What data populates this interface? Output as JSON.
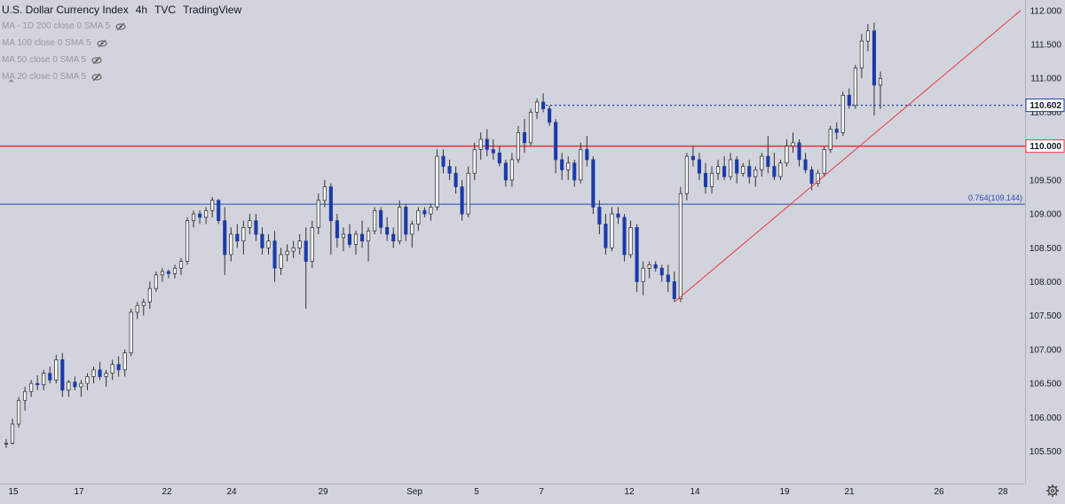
{
  "header": {
    "symbol": "U.S. Dollar Currency Index",
    "interval": "4h",
    "exchange": "TVC",
    "source": "TradingView",
    "indicators": [
      {
        "label": "MA - 1D 200 close 0 SMA 5",
        "icon": "eye-crossed-icon"
      },
      {
        "label": "MA 100 close 0 SMA 5",
        "icon": "eye-crossed-icon"
      },
      {
        "label": "MA 50 close 0 SMA 5",
        "icon": "eye-crossed-icon"
      },
      {
        "label": "MA 20 close 0 SMA 5",
        "icon": "eye-crossed-icon"
      }
    ]
  },
  "colors": {
    "background": "#d1d4dc",
    "bull_body": "#ffffff",
    "bear_body": "#1c3aa9",
    "wick": "#333333",
    "resistance": "#f23645",
    "fib": "#2a4bb0",
    "trendline": "#f23645"
  },
  "chart_data": {
    "type": "candlestick",
    "ylim": [
      105.35,
      112.05
    ],
    "yticks": [
      "112.000",
      "111.500",
      "111.000",
      "110.500",
      "110.000",
      "109.500",
      "109.000",
      "108.500",
      "108.000",
      "107.500",
      "107.000",
      "106.500",
      "106.000",
      "105.500"
    ],
    "xticks": [
      "15",
      "17",
      "22",
      "24",
      "29",
      "Sep",
      "5",
      "7",
      "12",
      "14",
      "19",
      "21",
      "26",
      "28"
    ],
    "price_labels": [
      {
        "value": 110.602,
        "text": "110.602",
        "style": "dotted"
      },
      {
        "value": 110.0,
        "text": "110.000",
        "style": "solid-red"
      }
    ],
    "fib_level": {
      "value": 109.144,
      "text": "0.764(109.144)"
    },
    "trendline": {
      "from": {
        "x": 107.7
      },
      "to": {
        "x": 112.0
      }
    },
    "candles": [
      [
        105.62,
        105.68,
        105.55,
        105.62
      ],
      [
        105.62,
        105.98,
        105.6,
        105.9
      ],
      [
        105.9,
        106.3,
        105.85,
        106.25
      ],
      [
        106.25,
        106.45,
        106.1,
        106.38
      ],
      [
        106.38,
        106.55,
        106.3,
        106.5
      ],
      [
        106.5,
        106.62,
        106.4,
        106.48
      ],
      [
        106.48,
        106.7,
        106.4,
        106.65
      ],
      [
        106.65,
        106.75,
        106.5,
        106.55
      ],
      [
        106.55,
        106.92,
        106.5,
        106.85
      ],
      [
        106.85,
        106.95,
        106.3,
        106.4
      ],
      [
        106.4,
        106.55,
        106.3,
        106.52
      ],
      [
        106.52,
        106.6,
        106.4,
        106.45
      ],
      [
        106.45,
        106.55,
        106.3,
        106.5
      ],
      [
        106.5,
        106.65,
        106.4,
        106.6
      ],
      [
        106.6,
        106.75,
        106.5,
        106.7
      ],
      [
        106.7,
        106.82,
        106.55,
        106.6
      ],
      [
        106.6,
        106.7,
        106.45,
        106.65
      ],
      [
        106.65,
        106.85,
        106.55,
        106.78
      ],
      [
        106.78,
        106.9,
        106.6,
        106.7
      ],
      [
        106.7,
        107.0,
        106.6,
        106.95
      ],
      [
        106.95,
        107.6,
        106.9,
        107.55
      ],
      [
        107.55,
        107.7,
        107.45,
        107.65
      ],
      [
        107.65,
        107.75,
        107.5,
        107.7
      ],
      [
        107.7,
        108.0,
        107.6,
        107.9
      ],
      [
        107.9,
        108.15,
        107.85,
        108.1
      ],
      [
        108.1,
        108.2,
        108.0,
        108.15
      ],
      [
        108.15,
        108.18,
        108.05,
        108.12
      ],
      [
        108.12,
        108.25,
        108.05,
        108.2
      ],
      [
        108.2,
        108.35,
        108.1,
        108.3
      ],
      [
        108.3,
        108.95,
        108.25,
        108.9
      ],
      [
        108.9,
        109.05,
        108.8,
        109.0
      ],
      [
        109.0,
        109.05,
        108.85,
        108.95
      ],
      [
        108.95,
        109.1,
        108.85,
        109.05
      ],
      [
        109.05,
        109.25,
        108.95,
        109.2
      ],
      [
        109.2,
        109.22,
        108.85,
        108.9
      ],
      [
        108.9,
        109.1,
        108.1,
        108.4
      ],
      [
        108.4,
        108.8,
        108.3,
        108.7
      ],
      [
        108.7,
        108.85,
        108.5,
        108.6
      ],
      [
        108.6,
        108.9,
        108.4,
        108.8
      ],
      [
        108.8,
        109.0,
        108.7,
        108.9
      ],
      [
        108.9,
        109.0,
        108.6,
        108.7
      ],
      [
        108.7,
        108.8,
        108.4,
        108.5
      ],
      [
        108.5,
        108.7,
        108.4,
        108.6
      ],
      [
        108.6,
        108.75,
        108.0,
        108.2
      ],
      [
        108.2,
        108.5,
        108.1,
        108.4
      ],
      [
        108.4,
        108.55,
        108.3,
        108.45
      ],
      [
        108.45,
        108.6,
        108.35,
        108.5
      ],
      [
        108.5,
        108.7,
        108.4,
        108.6
      ],
      [
        108.6,
        108.8,
        107.6,
        108.3
      ],
      [
        108.3,
        108.9,
        108.2,
        108.8
      ],
      [
        108.8,
        109.3,
        108.7,
        109.2
      ],
      [
        109.2,
        109.5,
        109.1,
        109.4
      ],
      [
        109.4,
        109.45,
        108.4,
        108.9
      ],
      [
        108.9,
        109.0,
        108.5,
        108.65
      ],
      [
        108.65,
        108.8,
        108.45,
        108.7
      ],
      [
        108.7,
        108.85,
        108.5,
        108.55
      ],
      [
        108.55,
        108.75,
        108.4,
        108.7
      ],
      [
        108.7,
        108.9,
        108.5,
        108.6
      ],
      [
        108.6,
        108.8,
        108.3,
        108.75
      ],
      [
        108.75,
        109.1,
        108.7,
        109.05
      ],
      [
        109.05,
        109.1,
        108.7,
        108.8
      ],
      [
        108.8,
        108.95,
        108.6,
        108.7
      ],
      [
        108.7,
        108.8,
        108.5,
        108.6
      ],
      [
        108.6,
        109.2,
        108.55,
        109.1
      ],
      [
        109.1,
        109.15,
        108.6,
        108.7
      ],
      [
        108.7,
        108.9,
        108.5,
        108.85
      ],
      [
        108.85,
        109.1,
        108.75,
        109.05
      ],
      [
        109.05,
        109.1,
        108.95,
        109.0
      ],
      [
        109.0,
        109.15,
        108.9,
        109.1
      ],
      [
        109.1,
        109.95,
        109.05,
        109.85
      ],
      [
        109.85,
        109.95,
        109.6,
        109.7
      ],
      [
        109.7,
        109.8,
        109.5,
        109.6
      ],
      [
        109.6,
        109.7,
        109.3,
        109.4
      ],
      [
        109.4,
        109.5,
        108.9,
        109.0
      ],
      [
        109.0,
        109.7,
        108.95,
        109.6
      ],
      [
        109.6,
        110.05,
        109.5,
        109.95
      ],
      [
        109.95,
        110.2,
        109.8,
        110.1
      ],
      [
        110.1,
        110.25,
        109.85,
        109.95
      ],
      [
        109.95,
        110.1,
        109.8,
        109.9
      ],
      [
        109.9,
        110.0,
        109.7,
        109.75
      ],
      [
        109.75,
        109.8,
        109.4,
        109.5
      ],
      [
        109.5,
        109.9,
        109.4,
        109.8
      ],
      [
        109.8,
        110.3,
        109.75,
        110.2
      ],
      [
        110.2,
        110.4,
        109.9,
        110.05
      ],
      [
        110.05,
        110.55,
        110.0,
        110.5
      ],
      [
        110.5,
        110.7,
        110.4,
        110.65
      ],
      [
        110.65,
        110.78,
        110.5,
        110.55
      ],
      [
        110.55,
        110.6,
        110.3,
        110.35
      ],
      [
        110.35,
        110.4,
        109.6,
        109.8
      ],
      [
        109.8,
        109.9,
        109.5,
        109.65
      ],
      [
        109.65,
        109.85,
        109.5,
        109.75
      ],
      [
        109.75,
        109.8,
        109.4,
        109.5
      ],
      [
        109.5,
        110.05,
        109.45,
        109.95
      ],
      [
        109.95,
        110.15,
        109.7,
        109.8
      ],
      [
        109.8,
        109.85,
        109.0,
        109.1
      ],
      [
        109.1,
        109.2,
        108.7,
        108.85
      ],
      [
        108.85,
        109.0,
        108.4,
        108.5
      ],
      [
        108.5,
        109.1,
        108.45,
        109.0
      ],
      [
        109.0,
        109.1,
        108.85,
        108.95
      ],
      [
        108.95,
        109.0,
        108.3,
        108.4
      ],
      [
        108.4,
        108.9,
        108.35,
        108.8
      ],
      [
        108.8,
        108.85,
        107.85,
        108.0
      ],
      [
        108.0,
        108.3,
        107.8,
        108.2
      ],
      [
        108.2,
        108.3,
        108.05,
        108.25
      ],
      [
        108.25,
        108.3,
        108.15,
        108.2
      ],
      [
        108.2,
        108.25,
        108.0,
        108.1
      ],
      [
        108.1,
        108.25,
        107.85,
        108.0
      ],
      [
        108.0,
        108.15,
        107.7,
        107.75
      ],
      [
        107.75,
        109.4,
        107.7,
        109.3
      ],
      [
        109.3,
        109.9,
        109.2,
        109.85
      ],
      [
        109.85,
        110.0,
        109.7,
        109.8
      ],
      [
        109.8,
        109.9,
        109.5,
        109.6
      ],
      [
        109.6,
        109.75,
        109.3,
        109.4
      ],
      [
        109.4,
        109.7,
        109.3,
        109.6
      ],
      [
        109.6,
        109.8,
        109.5,
        109.7
      ],
      [
        109.7,
        109.85,
        109.5,
        109.55
      ],
      [
        109.55,
        109.9,
        109.5,
        109.8
      ],
      [
        109.8,
        109.85,
        109.45,
        109.6
      ],
      [
        109.6,
        109.75,
        109.55,
        109.7
      ],
      [
        109.7,
        109.8,
        109.45,
        109.55
      ],
      [
        109.55,
        109.7,
        109.4,
        109.65
      ],
      [
        109.65,
        109.9,
        109.55,
        109.85
      ],
      [
        109.85,
        110.15,
        109.6,
        109.7
      ],
      [
        109.7,
        109.9,
        109.5,
        109.55
      ],
      [
        109.55,
        109.8,
        109.5,
        109.75
      ],
      [
        109.75,
        110.1,
        109.7,
        110.0
      ],
      [
        110.0,
        110.2,
        109.9,
        110.05
      ],
      [
        110.05,
        110.1,
        109.7,
        109.8
      ],
      [
        109.8,
        109.9,
        109.6,
        109.65
      ],
      [
        109.65,
        109.7,
        109.35,
        109.45
      ],
      [
        109.45,
        109.65,
        109.4,
        109.6
      ],
      [
        109.6,
        110.0,
        109.55,
        109.95
      ],
      [
        109.95,
        110.3,
        109.9,
        110.25
      ],
      [
        110.25,
        110.35,
        110.1,
        110.2
      ],
      [
        110.2,
        110.8,
        110.15,
        110.75
      ],
      [
        110.75,
        110.85,
        110.55,
        110.6
      ],
      [
        110.6,
        111.2,
        110.55,
        111.15
      ],
      [
        111.15,
        111.65,
        111.0,
        111.55
      ],
      [
        111.55,
        111.8,
        111.4,
        111.7
      ],
      [
        111.7,
        111.82,
        110.45,
        110.9
      ],
      [
        110.9,
        111.1,
        110.55,
        111.0
      ]
    ]
  }
}
